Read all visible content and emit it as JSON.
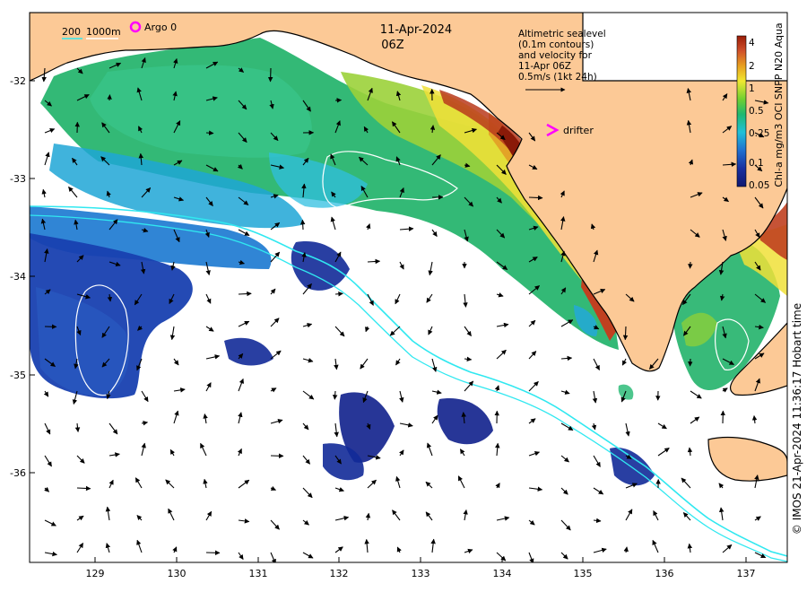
{
  "map": {
    "date": "11-Apr-2024",
    "time": "06Z",
    "depth_legend": {
      "label_200": "200",
      "label_1000": "1000m"
    },
    "argo": {
      "label": "Argo 0",
      "color": "#ff00ff"
    },
    "drifter": {
      "label": "drifter",
      "symbol": ">",
      "color": "#ff00ff"
    },
    "altimetry_note": [
      "Altimetric sealevel",
      "(0.1m contours)",
      "and velocity for",
      "11-Apr 06Z",
      "0.5m/s (1kt 24h)"
    ],
    "lat_ticks": [
      "-32",
      "-33",
      "-34",
      "-35",
      "-36"
    ],
    "lon_ticks": [
      "129",
      "130",
      "131",
      "132",
      "133",
      "134",
      "135",
      "136",
      "137"
    ],
    "colorbar": {
      "ticks": [
        "4",
        "2",
        "1",
        "0.5",
        "0.25",
        "0.1",
        "0.05"
      ],
      "title": "Chl-a mg/m3 OCI SNPP N20 Aqua",
      "colors": [
        "#9a1c08",
        "#d0502a",
        "#e8a020",
        "#f0e830",
        "#70d030",
        "#20b870",
        "#20c0d8",
        "#2070d0",
        "#1830a0",
        "#101870"
      ]
    },
    "credit": "© IMOS 21-Apr-2024 11:36:17 Hobart time",
    "land_color": "#fcc996",
    "isobath_200_color": "#30e8f0",
    "isobath_1000_color": "#ffffff",
    "arrow_color": "#000000"
  }
}
